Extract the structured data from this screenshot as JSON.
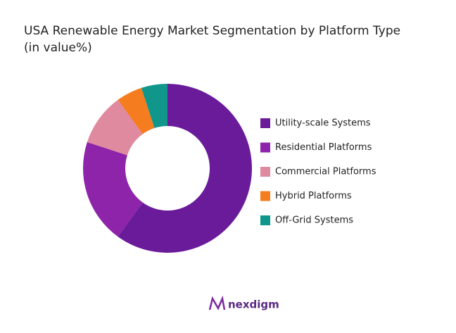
{
  "chart_data": {
    "type": "donut",
    "title": "USA Renewable Energy Market Segmentation by Platform Type",
    "subtitle": "(in value%)",
    "categories": [
      "Utility-scale Systems",
      "Residential Platforms",
      "Commercial Platforms",
      "Hybrid Platforms",
      "Off-Grid Systems"
    ],
    "values": [
      60,
      20,
      10,
      5,
      5
    ],
    "colors": [
      "#6a1b9a",
      "#8e24aa",
      "#df8a9f",
      "#f57c1f",
      "#10968a"
    ],
    "legend": "right"
  },
  "brand": "nexdigm"
}
